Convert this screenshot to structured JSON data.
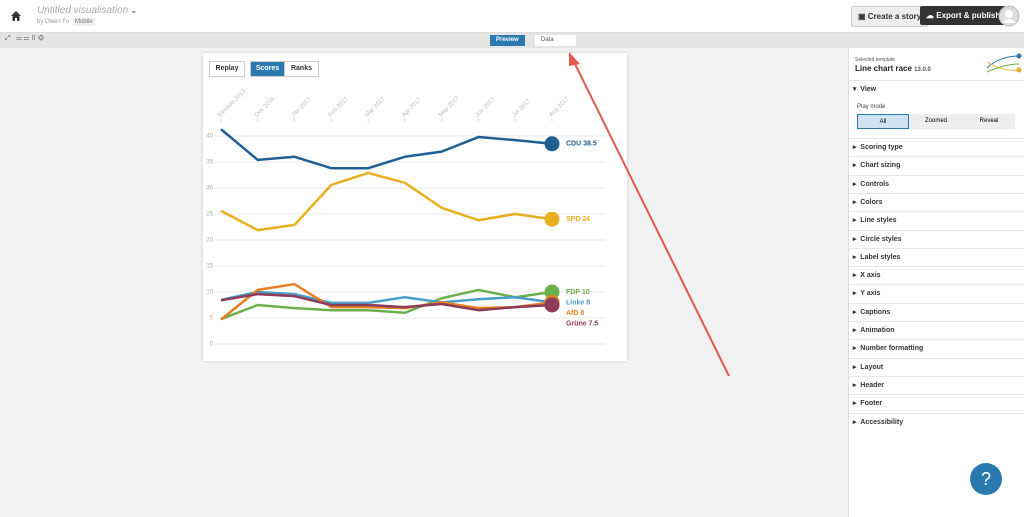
{
  "header": {
    "title": "Untitled visualisation",
    "byline": "by Owen Fo",
    "badge": "Mobile",
    "buttons": [
      "Create a story",
      "Export & publish"
    ]
  },
  "toolbar": {
    "tabs": [
      "Preview",
      "Data"
    ]
  },
  "controls": {
    "replay": "Replay",
    "modes": [
      "Scores",
      "Ranks"
    ]
  },
  "chart_data": {
    "type": "line",
    "categories": [
      "Election 2013",
      "Dec 2016",
      "Jan 2017",
      "Feb 2017",
      "Mar 2017",
      "Apr 2017",
      "May 2017",
      "Jun 2017",
      "Jul 2017",
      "Aug 2017"
    ],
    "series": [
      {
        "name": "CDU",
        "label": "CDU 38.5",
        "color": "#1f5f94",
        "values": [
          41.3,
          35.4,
          36,
          33.8,
          33.8,
          36,
          37,
          39.8,
          39.2,
          38.5
        ]
      },
      {
        "name": "SPD",
        "label": "SPD 24",
        "color": "#e8b020",
        "values": [
          25.6,
          21.9,
          22.9,
          30.6,
          32.9,
          31,
          26.2,
          23.8,
          25,
          24
        ]
      },
      {
        "name": "FDP",
        "label": "FDP 10",
        "color": "#6ab04c",
        "values": [
          4.8,
          7.5,
          6.9,
          6.5,
          6.5,
          6,
          8.8,
          10.4,
          9,
          10
        ]
      },
      {
        "name": "Linke",
        "label": "Linke 8",
        "color": "#4a9ec9",
        "values": [
          8.5,
          10,
          9.6,
          7.9,
          7.9,
          9,
          8,
          8.6,
          9,
          8
        ]
      },
      {
        "name": "AfD",
        "label": "AfD 8",
        "color": "#e67e22",
        "values": [
          4.7,
          10.4,
          11.5,
          7.1,
          7.1,
          6.9,
          8,
          6.9,
          7.1,
          8
        ]
      },
      {
        "name": "Grüne",
        "label": "Grüne 7.5",
        "color": "#8e3a59",
        "values": [
          8.4,
          9.6,
          9.2,
          7.5,
          7.5,
          7.1,
          7.7,
          6.5,
          7.1,
          7.5
        ]
      }
    ],
    "ylim": [
      0,
      40
    ],
    "yticks": [
      0,
      5,
      10,
      15,
      20,
      25,
      30,
      35,
      40
    ],
    "grid": true
  },
  "panel": {
    "caption": "Selected template",
    "template": "Line chart race",
    "version": "13.0.0",
    "view": "View",
    "play_mode": "Play mode",
    "play_modes": [
      "All",
      "Zoomed",
      "Reveal"
    ],
    "sections": [
      "Scoring type",
      "Chart sizing",
      "Controls",
      "Colors",
      "Line styles",
      "Circle styles",
      "Label styles",
      "X axis",
      "Y axis",
      "Captions",
      "Animation",
      "Number formatting",
      "Layout",
      "Header",
      "Footer",
      "Accessibility"
    ]
  },
  "help": "?"
}
